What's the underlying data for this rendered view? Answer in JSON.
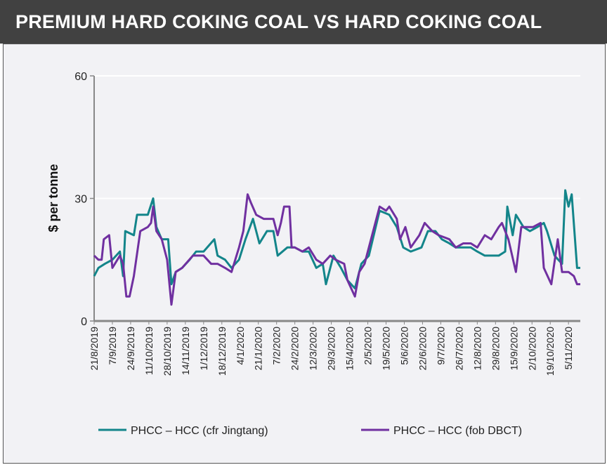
{
  "header": {
    "title": "PREMIUM HARD COKING COAL VS HARD COKING COAL"
  },
  "chart_data": {
    "type": "line",
    "title": "PREMIUM HARD COKING COAL VS HARD COKING COAL",
    "xlabel": "",
    "ylabel": "$ per tonne",
    "ylim": [
      0,
      60
    ],
    "yticks": [
      0,
      30,
      60
    ],
    "x_unit": "days since 21/8/2019",
    "xlim": [
      0,
      453
    ],
    "xtick_labels": [
      "21/8/2019",
      "7/9/2019",
      "24/9/2019",
      "11/10/2019",
      "28/10/2019",
      "14/11/2019",
      "1/12/2019",
      "18/12/2019",
      "4/1/2020",
      "21/1/2020",
      "7/2/2020",
      "24/2/2020",
      "12/3/2020",
      "29/3/2020",
      "15/4/2020",
      "2/5/2020",
      "19/5/2020",
      "5/6/2020",
      "22/6/2020",
      "9/7/2020",
      "26/7/2020",
      "12/8/2020",
      "29/8/2020",
      "15/9/2020",
      "2/10/2020",
      "19/10/2020",
      "5/11/2020"
    ],
    "grid": "horizontal",
    "legend": "bottom",
    "series": [
      {
        "name": "PHCC – HCC (cfr Jingtang)",
        "color": "#13858a",
        "points": [
          [
            0,
            11
          ],
          [
            4,
            13
          ],
          [
            10,
            14
          ],
          [
            17,
            15
          ],
          [
            24,
            17
          ],
          [
            27,
            11
          ],
          [
            29,
            22
          ],
          [
            37,
            21
          ],
          [
            40,
            26
          ],
          [
            50,
            26
          ],
          [
            55,
            30
          ],
          [
            58,
            23
          ],
          [
            63,
            20
          ],
          [
            69,
            20
          ],
          [
            72,
            9
          ],
          [
            76,
            12
          ],
          [
            82,
            13
          ],
          [
            89,
            15
          ],
          [
            95,
            17
          ],
          [
            102,
            17
          ],
          [
            112,
            20
          ],
          [
            115,
            16
          ],
          [
            122,
            15
          ],
          [
            128,
            13
          ],
          [
            135,
            15
          ],
          [
            141,
            20
          ],
          [
            148,
            25
          ],
          [
            154,
            19
          ],
          [
            161,
            22
          ],
          [
            167,
            22
          ],
          [
            171,
            16
          ],
          [
            180,
            18
          ],
          [
            187,
            18
          ],
          [
            194,
            17
          ],
          [
            200,
            17
          ],
          [
            207,
            13
          ],
          [
            213,
            14
          ],
          [
            216,
            9
          ],
          [
            223,
            16
          ],
          [
            230,
            13
          ],
          [
            236,
            10
          ],
          [
            243,
            8
          ],
          [
            249,
            14
          ],
          [
            256,
            16
          ],
          [
            266,
            27
          ],
          [
            275,
            26
          ],
          [
            282,
            23
          ],
          [
            288,
            18
          ],
          [
            295,
            17
          ],
          [
            305,
            18
          ],
          [
            311,
            22
          ],
          [
            318,
            22
          ],
          [
            324,
            20
          ],
          [
            331,
            19
          ],
          [
            337,
            18
          ],
          [
            344,
            18
          ],
          [
            351,
            18
          ],
          [
            357,
            17
          ],
          [
            364,
            16
          ],
          [
            370,
            16
          ],
          [
            377,
            16
          ],
          [
            383,
            17
          ],
          [
            385,
            28
          ],
          [
            390,
            21
          ],
          [
            393,
            26
          ],
          [
            400,
            23
          ],
          [
            406,
            22
          ],
          [
            413,
            23
          ],
          [
            419,
            24
          ],
          [
            422,
            22
          ],
          [
            429,
            16
          ],
          [
            436,
            14
          ],
          [
            439,
            32
          ],
          [
            442,
            28
          ],
          [
            445,
            31
          ],
          [
            450,
            13
          ],
          [
            453,
            13
          ]
        ]
      },
      {
        "name": "PHCC – HCC (fob DBCT)",
        "color": "#7030a0",
        "points": [
          [
            0,
            16
          ],
          [
            4,
            15
          ],
          [
            7,
            15
          ],
          [
            9,
            20
          ],
          [
            14,
            21
          ],
          [
            17,
            13
          ],
          [
            24,
            16
          ],
          [
            27,
            14
          ],
          [
            30,
            6
          ],
          [
            33,
            6
          ],
          [
            37,
            11
          ],
          [
            43,
            22
          ],
          [
            50,
            23
          ],
          [
            53,
            24
          ],
          [
            55,
            28
          ],
          [
            58,
            22
          ],
          [
            63,
            20
          ],
          [
            68,
            15
          ],
          [
            72,
            4
          ],
          [
            76,
            12
          ],
          [
            82,
            13
          ],
          [
            92,
            16
          ],
          [
            102,
            16
          ],
          [
            109,
            14
          ],
          [
            115,
            14
          ],
          [
            122,
            13
          ],
          [
            128,
            12
          ],
          [
            135,
            18
          ],
          [
            139,
            22
          ],
          [
            143,
            31
          ],
          [
            146,
            29
          ],
          [
            151,
            26
          ],
          [
            158,
            25
          ],
          [
            167,
            25
          ],
          [
            171,
            21
          ],
          [
            174,
            24
          ],
          [
            177,
            28
          ],
          [
            182,
            28
          ],
          [
            184,
            18
          ],
          [
            187,
            18
          ],
          [
            194,
            17
          ],
          [
            200,
            18
          ],
          [
            207,
            15
          ],
          [
            213,
            14
          ],
          [
            220,
            16
          ],
          [
            225,
            15
          ],
          [
            233,
            14
          ],
          [
            236,
            10
          ],
          [
            243,
            6
          ],
          [
            247,
            12
          ],
          [
            252,
            14
          ],
          [
            266,
            28
          ],
          [
            272,
            27
          ],
          [
            275,
            28
          ],
          [
            282,
            25
          ],
          [
            285,
            20
          ],
          [
            290,
            23
          ],
          [
            295,
            18
          ],
          [
            303,
            21
          ],
          [
            308,
            24
          ],
          [
            315,
            22
          ],
          [
            321,
            21
          ],
          [
            331,
            20
          ],
          [
            337,
            18
          ],
          [
            344,
            19
          ],
          [
            351,
            19
          ],
          [
            357,
            18
          ],
          [
            364,
            21
          ],
          [
            370,
            20
          ],
          [
            377,
            23
          ],
          [
            380,
            24
          ],
          [
            386,
            20
          ],
          [
            393,
            12
          ],
          [
            398,
            23
          ],
          [
            403,
            23
          ],
          [
            409,
            23
          ],
          [
            416,
            24
          ],
          [
            419,
            13
          ],
          [
            426,
            9
          ],
          [
            432,
            20
          ],
          [
            436,
            12
          ],
          [
            442,
            12
          ],
          [
            447,
            11
          ],
          [
            450,
            9
          ],
          [
            453,
            9
          ]
        ]
      }
    ]
  }
}
